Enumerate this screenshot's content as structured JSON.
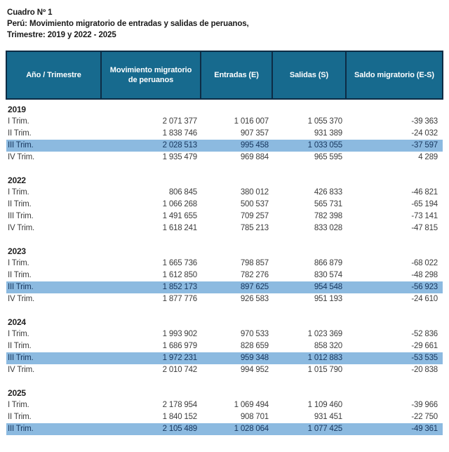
{
  "title": "Cuadro Nº 1",
  "subtitle1": "Perú: Movimiento migratorio de entradas y salidas de peruanos,",
  "subtitle2": "Trimestre: 2019 y 2022 - 2025",
  "colors": {
    "header_bg": "#176A8E",
    "header_border": "#0D2C45",
    "highlight_row": "#8CBAE0",
    "highlight_text": "#17365D",
    "body_text": "#3C3C3C"
  },
  "table": {
    "columns": [
      "Año / Trimestre",
      "Movimiento migratorio de peruanos",
      "Entradas (E)",
      "Salidas (S)",
      "Saldo migratorio (E-S)"
    ],
    "groups": [
      {
        "year": "2019",
        "rows": [
          {
            "label": "I Trim.",
            "values": [
              "2 071 377",
              "1 016 007",
              "1 055 370",
              "-39 363"
            ],
            "highlight": false
          },
          {
            "label": "II Trim.",
            "values": [
              "1 838 746",
              "907 357",
              "931 389",
              "-24 032"
            ],
            "highlight": false
          },
          {
            "label": "III Trim.",
            "values": [
              "2 028 513",
              "995 458",
              "1 033 055",
              "-37 597"
            ],
            "highlight": true
          },
          {
            "label": "IV Trim.",
            "values": [
              "1 935 479",
              "969 884",
              "965 595",
              "4 289"
            ],
            "highlight": false
          }
        ]
      },
      {
        "year": "2022",
        "rows": [
          {
            "label": "I Trim.",
            "values": [
              "806 845",
              "380 012",
              "426 833",
              "-46 821"
            ],
            "highlight": false
          },
          {
            "label": "II Trim.",
            "values": [
              "1 066 268",
              "500 537",
              "565 731",
              "-65 194"
            ],
            "highlight": false
          },
          {
            "label": "III Trim.",
            "values": [
              "1 491 655",
              "709 257",
              "782 398",
              "-73 141"
            ],
            "highlight": false
          },
          {
            "label": "IV Trim.",
            "values": [
              "1 618 241",
              "785 213",
              "833 028",
              "-47 815"
            ],
            "highlight": false
          }
        ]
      },
      {
        "year": "2023",
        "rows": [
          {
            "label": "I Trim.",
            "values": [
              "1 665 736",
              "798 857",
              "866 879",
              "-68 022"
            ],
            "highlight": false
          },
          {
            "label": "II Trim.",
            "values": [
              "1 612 850",
              "782 276",
              "830 574",
              "-48 298"
            ],
            "highlight": false
          },
          {
            "label": "III Trim.",
            "values": [
              "1 852 173",
              "897 625",
              "954 548",
              "-56 923"
            ],
            "highlight": true
          },
          {
            "label": "IV Trim.",
            "values": [
              "1 877 776",
              "926 583",
              "951 193",
              "-24 610"
            ],
            "highlight": false
          }
        ]
      },
      {
        "year": "2024",
        "rows": [
          {
            "label": "I Trim.",
            "values": [
              "1 993 902",
              "970 533",
              "1 023 369",
              "-52 836"
            ],
            "highlight": false
          },
          {
            "label": "II Trim.",
            "values": [
              "1 686 979",
              "828 659",
              "858 320",
              "-29 661"
            ],
            "highlight": false
          },
          {
            "label": "III Trim.",
            "values": [
              "1 972 231",
              "959 348",
              "1 012 883",
              "-53 535"
            ],
            "highlight": true
          },
          {
            "label": "IV Trim.",
            "values": [
              "2 010 742",
              "994 952",
              "1 015 790",
              "-20 838"
            ],
            "highlight": false
          }
        ]
      },
      {
        "year": "2025",
        "rows": [
          {
            "label": "I Trim.",
            "values": [
              "2 178 954",
              "1 069 494",
              "1 109 460",
              "-39 966"
            ],
            "highlight": false
          },
          {
            "label": "II Trim.",
            "values": [
              "1 840 152",
              "908 701",
              "931 451",
              "-22 750"
            ],
            "highlight": false
          },
          {
            "label": "III Trim.",
            "values": [
              "2 105 489",
              "1 028 064",
              "1 077 425",
              "-49 361"
            ],
            "highlight": true
          }
        ]
      }
    ]
  }
}
